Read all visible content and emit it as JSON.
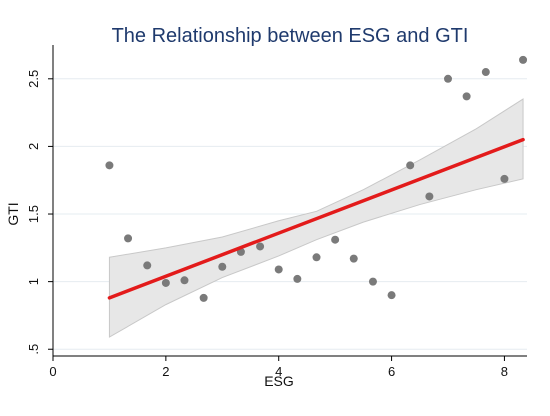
{
  "chart_data": {
    "type": "scatter",
    "title": "The Relationship between ESG and GTI",
    "xlabel": "ESG",
    "ylabel": "GTI",
    "xlim": [
      0,
      8.4
    ],
    "ylim": [
      0.45,
      2.75
    ],
    "xticks": [
      0,
      2,
      4,
      6,
      8
    ],
    "yticks": [
      0.5,
      1,
      1.5,
      2,
      2.5
    ],
    "xtick_labels": [
      "0",
      "2",
      "4",
      "6",
      "8"
    ],
    "ytick_labels": [
      ".5",
      "1",
      "1.5",
      "2",
      "2.5"
    ],
    "grid": true,
    "series": [
      {
        "points": [
          [
            1.0,
            1.86
          ],
          [
            1.33,
            1.32
          ],
          [
            1.67,
            1.12
          ],
          [
            2.0,
            0.99
          ],
          [
            2.33,
            1.01
          ],
          [
            2.67,
            0.88
          ],
          [
            3.0,
            1.11
          ],
          [
            3.33,
            1.22
          ],
          [
            3.67,
            1.26
          ],
          [
            4.0,
            1.09
          ],
          [
            4.33,
            1.02
          ],
          [
            4.67,
            1.18
          ],
          [
            5.0,
            1.31
          ],
          [
            5.33,
            1.17
          ],
          [
            5.67,
            1.0
          ],
          [
            6.0,
            0.9
          ],
          [
            6.33,
            1.86
          ],
          [
            6.67,
            1.63
          ],
          [
            7.0,
            2.5
          ],
          [
            7.33,
            2.37
          ],
          [
            7.67,
            2.55
          ],
          [
            8.0,
            1.76
          ],
          [
            8.33,
            2.64
          ]
        ]
      }
    ],
    "fit_line": {
      "x": [
        1.0,
        8.33
      ],
      "y": [
        0.88,
        2.05
      ]
    },
    "ci_band": {
      "x": [
        1.0,
        2.0,
        3.0,
        4.0,
        4.67,
        5.5,
        6.5,
        7.5,
        8.33
      ],
      "lower": [
        0.59,
        0.83,
        1.03,
        1.19,
        1.31,
        1.44,
        1.57,
        1.68,
        1.76
      ],
      "upper": [
        1.18,
        1.25,
        1.33,
        1.45,
        1.52,
        1.68,
        1.9,
        2.13,
        2.35
      ]
    },
    "colors": {
      "title": "#1f3a6d",
      "points": "#7a7a7a",
      "fit_line": "#e31b1b",
      "ci_band_fill": "#e7e7e7",
      "ci_band_stroke": "#c8c8c8",
      "grid": "#e6ecf0",
      "axis": "#000000"
    }
  }
}
